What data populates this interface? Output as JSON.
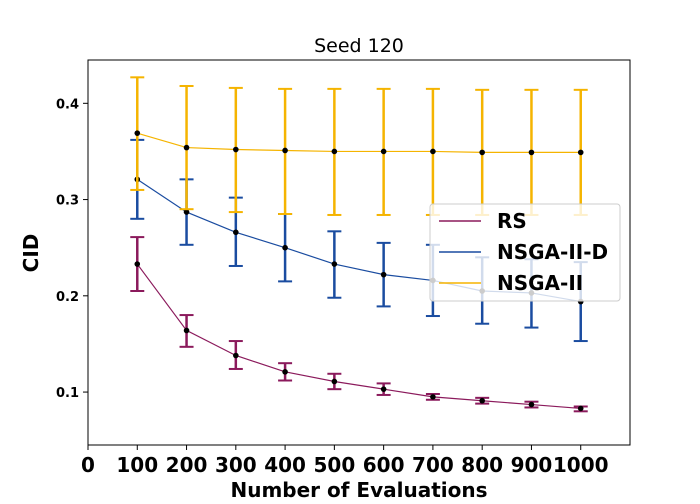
{
  "chart_data": {
    "type": "line",
    "title": "Seed 120",
    "xlabel": "Number of Evaluations",
    "ylabel": "CID",
    "xlim": [
      0,
      1100
    ],
    "ylim": [
      0.045,
      0.445
    ],
    "x_ticks": [
      0,
      100,
      200,
      300,
      400,
      500,
      600,
      700,
      800,
      900,
      1000
    ],
    "x_tick_labels": [
      "0",
      "100",
      "200",
      "300",
      "400",
      "500",
      "600",
      "700",
      "800",
      "900",
      "1000"
    ],
    "y_ticks": [
      0.1,
      0.2,
      0.3,
      0.4
    ],
    "y_tick_labels": [
      "0.1",
      "0.2",
      "0.3",
      "0.4"
    ],
    "grid": false,
    "legend_position": "center-right",
    "x": [
      100,
      200,
      300,
      400,
      500,
      600,
      700,
      800,
      900,
      1000
    ],
    "series": [
      {
        "name": "RS",
        "color": "#8b1a5c",
        "values": [
          0.233,
          0.164,
          0.138,
          0.121,
          0.111,
          0.103,
          0.095,
          0.091,
          0.087,
          0.083
        ],
        "err_low": [
          0.205,
          0.147,
          0.124,
          0.112,
          0.103,
          0.097,
          0.092,
          0.088,
          0.084,
          0.08
        ],
        "err_high": [
          0.261,
          0.18,
          0.153,
          0.13,
          0.119,
          0.109,
          0.098,
          0.094,
          0.09,
          0.085
        ]
      },
      {
        "name": "NSGA-II-D",
        "color": "#1a4ca0",
        "values": [
          0.321,
          0.287,
          0.266,
          0.25,
          0.233,
          0.222,
          0.216,
          0.205,
          0.203,
          0.194
        ],
        "err_low": [
          0.28,
          0.253,
          0.231,
          0.215,
          0.198,
          0.189,
          0.179,
          0.171,
          0.167,
          0.153
        ],
        "err_high": [
          0.362,
          0.321,
          0.302,
          0.285,
          0.267,
          0.255,
          0.253,
          0.24,
          0.238,
          0.235
        ]
      },
      {
        "name": "NSGA-II",
        "color": "#f5b400",
        "values": [
          0.369,
          0.354,
          0.352,
          0.351,
          0.35,
          0.35,
          0.35,
          0.349,
          0.349,
          0.349
        ],
        "err_low": [
          0.31,
          0.29,
          0.287,
          0.285,
          0.284,
          0.284,
          0.284,
          0.284,
          0.284,
          0.284
        ],
        "err_high": [
          0.427,
          0.418,
          0.416,
          0.415,
          0.415,
          0.415,
          0.415,
          0.414,
          0.414,
          0.414
        ]
      }
    ]
  }
}
